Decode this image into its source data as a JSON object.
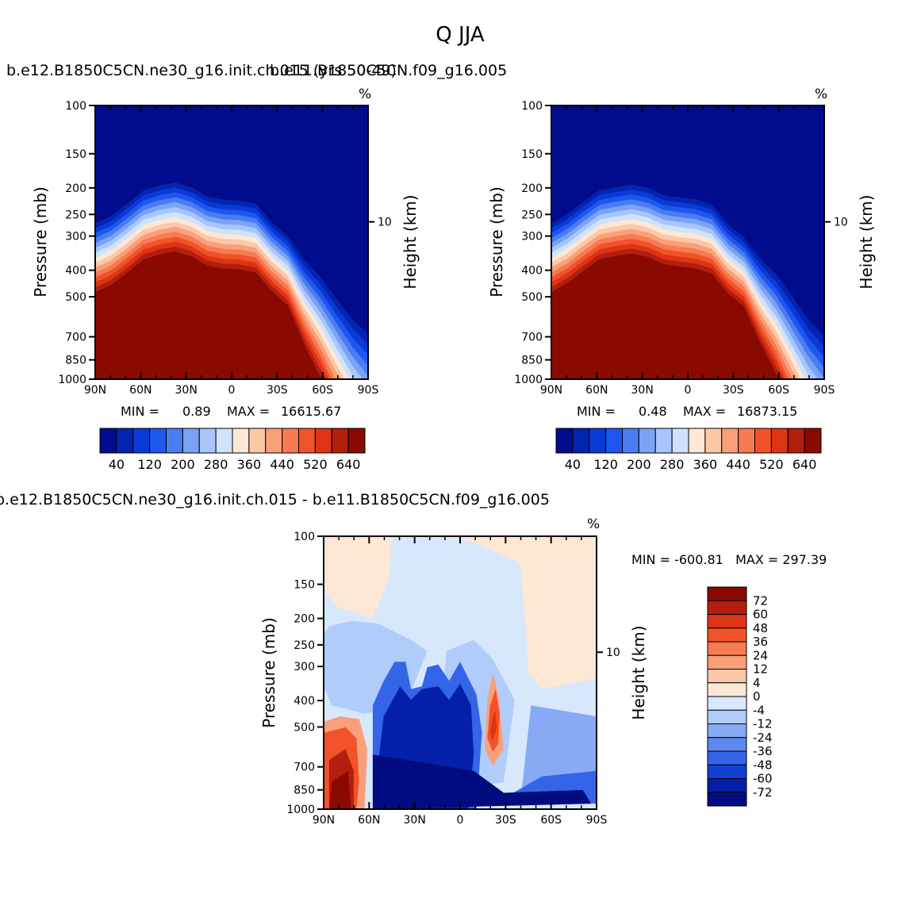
{
  "main_title": "Q  JJA",
  "chart_data": [
    {
      "type": "heatmap",
      "subtitle_left": "b.e12.B1850C5CN.ne30_g16.init.ch.015 (yrs 50-49)",
      "subtitle_right": "b.e11.B1850C5CN.f09_g16.005",
      "units": "%",
      "ylabel": "Pressure (mb)",
      "ylabel_right": "Height (km)",
      "y_ticks": [
        "100",
        "150",
        "200",
        "250",
        "300",
        "400",
        "500",
        "700",
        "850",
        "1000"
      ],
      "y_right_ticks": [
        "10"
      ],
      "x_ticks": [
        "90N",
        "60N",
        "30N",
        "0",
        "30S",
        "60S",
        "90S"
      ],
      "min_label": "MIN =",
      "min_value": "0.89",
      "max_label": "MAX =",
      "max_value": "16615.67",
      "colorbar_labels": [
        "40",
        "120",
        "200",
        "280",
        "360",
        "440",
        "520",
        "640"
      ],
      "colors": [
        "#000c8c",
        "#0224b0",
        "#0a3ad6",
        "#2056f0",
        "#4a7cf2",
        "#7aa2f5",
        "#a8c6fa",
        "#d0e2fc",
        "#fde8d6",
        "#fcc8a8",
        "#f9a07a",
        "#f77a52",
        "#f2522a",
        "#de3416",
        "#b41e0c",
        "#8a0a02"
      ]
    },
    {
      "type": "heatmap",
      "units": "%",
      "ylabel": "Pressure (mb)",
      "ylabel_right": "Height (km)",
      "y_ticks": [
        "100",
        "150",
        "200",
        "250",
        "300",
        "400",
        "500",
        "700",
        "850",
        "1000"
      ],
      "y_right_ticks": [
        "10"
      ],
      "x_ticks": [
        "90N",
        "60N",
        "30N",
        "0",
        "30S",
        "60S",
        "90S"
      ],
      "min_label": "MIN =",
      "min_value": "0.48",
      "max_label": "MAX =",
      "max_value": "16873.15",
      "colorbar_labels": [
        "40",
        "120",
        "200",
        "280",
        "360",
        "440",
        "520",
        "640"
      ]
    },
    {
      "type": "heatmap",
      "subtitle": "b.e12.B1850C5CN.ne30_g16.init.ch.015 - b.e11.B1850C5CN.f09_g16.005",
      "units": "%",
      "ylabel": "Pressure (mb)",
      "ylabel_right": "Height (km)",
      "y_ticks": [
        "100",
        "150",
        "200",
        "250",
        "300",
        "400",
        "500",
        "700",
        "850",
        "1000"
      ],
      "y_right_ticks": [
        "10"
      ],
      "x_ticks": [
        "90N",
        "60N",
        "30N",
        "0",
        "30S",
        "60S",
        "90S"
      ],
      "minmax_text": "MIN = -600.81   MAX = 297.39",
      "colorbar_labels": [
        "72",
        "60",
        "48",
        "36",
        "24",
        "12",
        "4",
        "0",
        "-4",
        "-12",
        "-24",
        "-36",
        "-48",
        "-60",
        "-72"
      ],
      "colors": [
        "#8a0a02",
        "#b41e0c",
        "#de3416",
        "#f2522a",
        "#f77a52",
        "#f9a07a",
        "#fcc8a8",
        "#fde8d6",
        "#d8e8fc",
        "#b0ccfa",
        "#88aaf4",
        "#5e88f0",
        "#3464e8",
        "#1040d4",
        "#0420a8",
        "#000c80"
      ]
    }
  ]
}
